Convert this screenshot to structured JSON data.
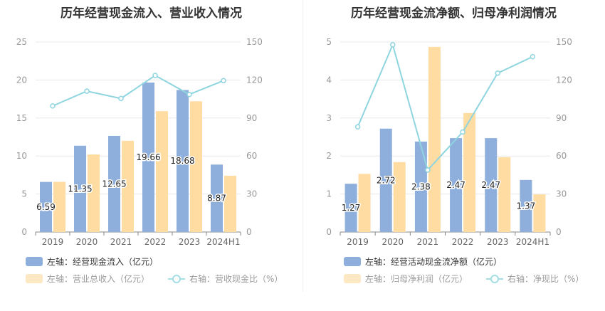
{
  "colors": {
    "blue": "#8eaedc",
    "orange": "#fedca2",
    "line": "#8fd5df",
    "grid": "#e8e8e8",
    "axis": "#999999"
  },
  "chart_data": [
    {
      "type": "bar",
      "title": "历年经营现金流入、营业收入情况",
      "categories": [
        "2019",
        "2020",
        "2021",
        "2022",
        "2023",
        "2024H1"
      ],
      "ylim_left": [
        0,
        25
      ],
      "yticks_left": [
        "0",
        "5",
        "10",
        "15",
        "20",
        "25"
      ],
      "ylim_right": [
        0,
        150
      ],
      "yticks_right": [
        "0",
        "30",
        "60",
        "90",
        "120",
        "150"
      ],
      "series": [
        {
          "name": "左轴：经营现金流入（亿元）",
          "axis": "left",
          "kind": "bar",
          "values": [
            6.59,
            11.35,
            12.65,
            19.66,
            18.68,
            8.87
          ],
          "labels": [
            "6.59",
            "11.35",
            "12.65",
            "19.66",
            "18.68",
            "8.87"
          ]
        },
        {
          "name": "左轴：营业总收入（亿元）",
          "axis": "left",
          "kind": "bar",
          "values": [
            6.6,
            10.2,
            12.0,
            15.9,
            17.2,
            7.4
          ]
        },
        {
          "name": "右轴：营收现金比（%）",
          "axis": "right",
          "kind": "line",
          "values": [
            99.5,
            111.2,
            105.4,
            123.6,
            108.6,
            119.5
          ]
        }
      ]
    },
    {
      "type": "bar",
      "title": "历年经营现金流净额、归母净利润情况",
      "categories": [
        "2019",
        "2020",
        "2021",
        "2022",
        "2023",
        "2024H1"
      ],
      "ylim_left": [
        0,
        5
      ],
      "yticks_left": [
        "0",
        "1",
        "2",
        "3",
        "4",
        "5"
      ],
      "ylim_right": [
        0,
        150
      ],
      "yticks_right": [
        "0",
        "30",
        "60",
        "90",
        "120",
        "150"
      ],
      "series": [
        {
          "name": "左轴：经营活动现金流净额（亿元）",
          "axis": "left",
          "kind": "bar",
          "values": [
            1.27,
            2.72,
            2.38,
            2.47,
            2.47,
            1.37
          ],
          "labels": [
            "1.27",
            "2.72",
            "2.38",
            "2.47",
            "2.47",
            "1.37"
          ]
        },
        {
          "name": "左轴：归母净利润（亿元）",
          "axis": "left",
          "kind": "bar",
          "values": [
            1.53,
            1.84,
            4.87,
            3.13,
            1.97,
            0.99
          ]
        },
        {
          "name": "右轴：净现比（%）",
          "axis": "right",
          "kind": "line",
          "values": [
            83.0,
            147.8,
            48.9,
            78.9,
            125.4,
            138.4
          ]
        }
      ]
    }
  ]
}
